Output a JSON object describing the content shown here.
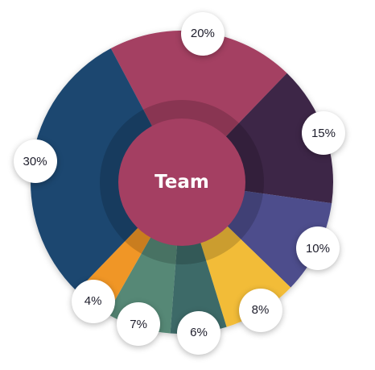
{
  "chart_data": {
    "type": "pie",
    "center_label": "Team",
    "slices": [
      {
        "label": "20%",
        "value": 20,
        "color": "#a43f62"
      },
      {
        "label": "15%",
        "value": 15,
        "color": "#3c2547"
      },
      {
        "label": "10%",
        "value": 10,
        "color": "#4d4e8c"
      },
      {
        "label": "8%",
        "value": 8,
        "color": "#f2bc38"
      },
      {
        "label": "6%",
        "value": 6,
        "color": "#3e6b67"
      },
      {
        "label": "7%",
        "value": 7,
        "color": "#578876"
      },
      {
        "label": "4%",
        "value": 4,
        "color": "#f09627"
      },
      {
        "label": "30%",
        "value": 30,
        "color": "#1c4670"
      }
    ],
    "hub_color": "#a43f62",
    "background": "#ffffff"
  }
}
